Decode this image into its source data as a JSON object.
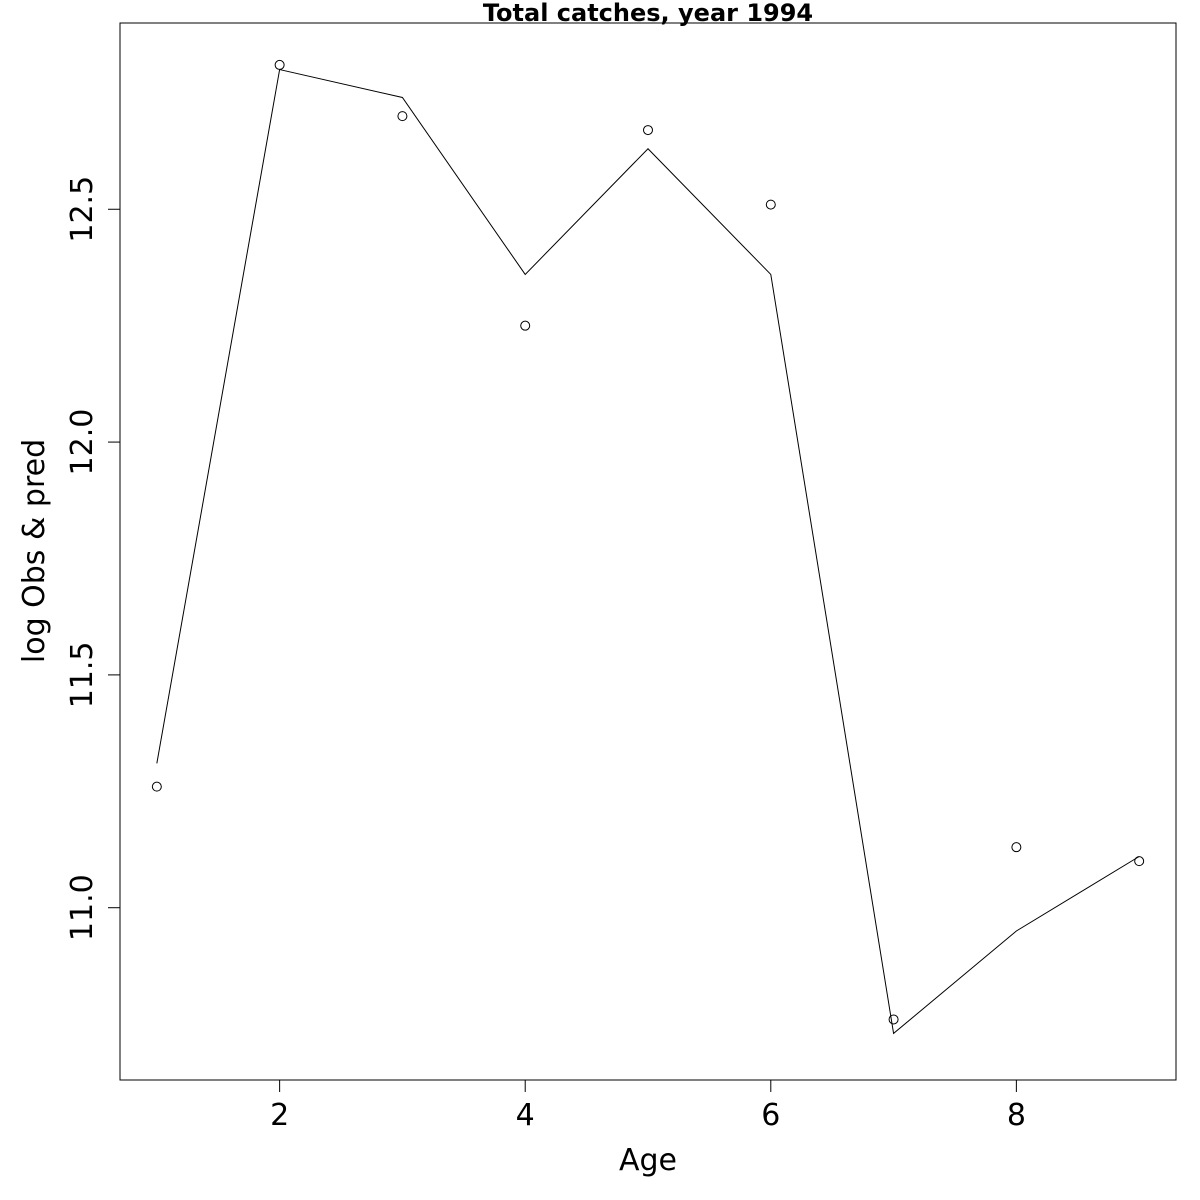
{
  "chart_data": {
    "type": "line",
    "title": "Total catches, year 1994",
    "xlabel": "Age",
    "ylabel": "log Obs & pred",
    "xlim": [
      0.7,
      9.3
    ],
    "ylim": [
      10.63,
      12.9
    ],
    "x_ticks": [
      2,
      4,
      6,
      8
    ],
    "y_ticks": [
      11.0,
      11.5,
      12.0,
      12.5
    ],
    "x_tick_labels": [
      "2",
      "4",
      "6",
      "8"
    ],
    "y_tick_labels": [
      "11.0",
      "11.5",
      "12.0",
      "12.5"
    ],
    "grid": false,
    "series": [
      {
        "kind": "points",
        "marker": "open-circle",
        "x": [
          1,
          2,
          3,
          4,
          5,
          6,
          7,
          8,
          9
        ],
        "y": [
          11.26,
          12.81,
          12.7,
          12.25,
          12.67,
          12.51,
          10.76,
          11.13,
          11.1
        ]
      },
      {
        "kind": "line",
        "x": [
          1,
          2,
          3,
          4,
          5,
          6,
          7,
          8,
          9
        ],
        "y": [
          11.31,
          12.8,
          12.74,
          12.36,
          12.63,
          12.36,
          10.73,
          10.95,
          11.11
        ]
      }
    ]
  }
}
